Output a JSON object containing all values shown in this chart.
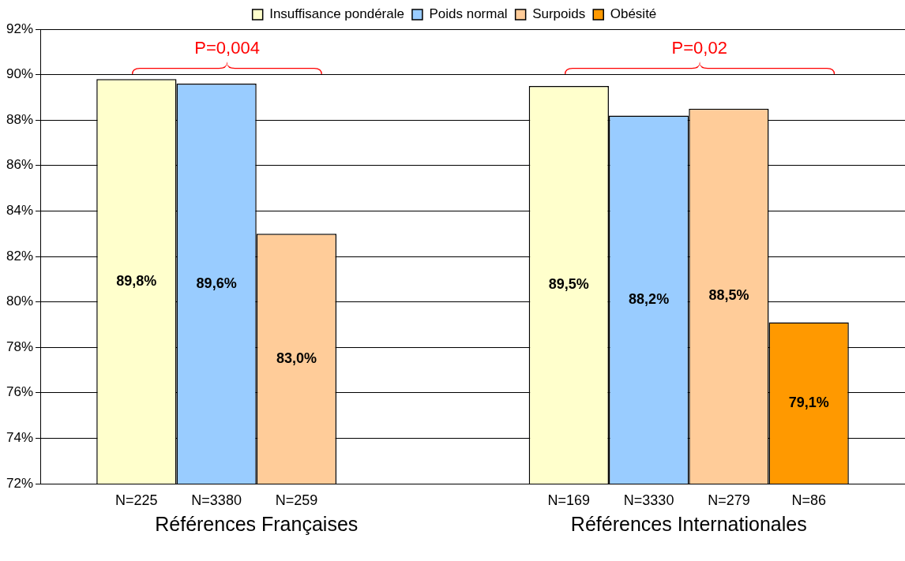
{
  "chart_data": {
    "type": "bar",
    "categories": [
      "Références Françaises",
      "Références Internationales"
    ],
    "series": [
      {
        "name": "Insuffisance pondérale",
        "color": "#ffffcc",
        "values": [
          89.8,
          89.5
        ],
        "value_labels": [
          "89,8%",
          "89,5%"
        ]
      },
      {
        "name": "Poids normal",
        "color": "#99ccff",
        "values": [
          89.6,
          88.2
        ],
        "value_labels": [
          "89,6%",
          "88,2%"
        ]
      },
      {
        "name": "Surpoids",
        "color": "#ffcc99",
        "values": [
          83.0,
          88.5
        ],
        "value_labels": [
          "83,0%",
          "88,5%"
        ]
      },
      {
        "name": "Obésité",
        "color": "#ff9900",
        "values": [
          null,
          79.1
        ],
        "value_labels": [
          null,
          "79,1%"
        ]
      }
    ],
    "ylim": [
      72,
      92
    ],
    "yticks": [
      {
        "value": 72,
        "label": "72%"
      },
      {
        "value": 74,
        "label": "74%"
      },
      {
        "value": 76,
        "label": "76%"
      },
      {
        "value": 78,
        "label": "78%"
      },
      {
        "value": 80,
        "label": "80%"
      },
      {
        "value": 82,
        "label": "82%"
      },
      {
        "value": 84,
        "label": "84%"
      },
      {
        "value": 86,
        "label": "86%"
      },
      {
        "value": 88,
        "label": "88%"
      },
      {
        "value": 90,
        "label": "90%"
      },
      {
        "value": 92,
        "label": "92%"
      }
    ],
    "grid": "y",
    "legend": "top",
    "annotations": [
      "P=0,004",
      "P=0,02",
      "N=225",
      "N=3380",
      "N=259",
      "N=169",
      "N=3330",
      "N=279",
      "N=86"
    ]
  }
}
